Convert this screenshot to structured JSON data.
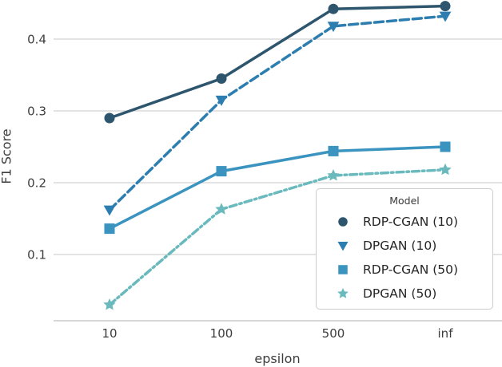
{
  "chart_data": {
    "type": "line",
    "title": "",
    "xlabel": "epsilon",
    "ylabel": "F1 Score",
    "categories": [
      "10",
      "100",
      "500",
      "inf"
    ],
    "yticks": [
      0.1,
      0.2,
      0.3,
      0.4
    ],
    "ytick_labels": [
      "0.1",
      "0.2",
      "0.3",
      "0.4"
    ],
    "ylim": [
      0.008,
      0.455
    ],
    "grid": "horizontal",
    "legend_title": "Model",
    "legend_position": "lower right",
    "series": [
      {
        "name": "RDP-CGAN (10)",
        "marker": "circle",
        "line_style": "solid",
        "color": "#2d566e",
        "values": [
          0.29,
          0.345,
          0.442,
          0.446
        ]
      },
      {
        "name": "DPGAN (10)",
        "marker": "triangle-down",
        "line_style": "dashed",
        "color": "#2d7eb0",
        "values": [
          0.162,
          0.315,
          0.418,
          0.432
        ]
      },
      {
        "name": "RDP-CGAN (50)",
        "marker": "square",
        "line_style": "solid",
        "color": "#3b93bf",
        "values": [
          0.136,
          0.216,
          0.244,
          0.25
        ]
      },
      {
        "name": "DPGAN (50)",
        "marker": "star",
        "line_style": "dash-dot",
        "color": "#69b9bd",
        "values": [
          0.03,
          0.163,
          0.21,
          0.218
        ]
      }
    ],
    "colors": {
      "grid": "#d2d2d2",
      "axis_line": "#bfbfbf",
      "tick_text": "#3d3d3d",
      "legend_border": "#cccccc"
    }
  }
}
